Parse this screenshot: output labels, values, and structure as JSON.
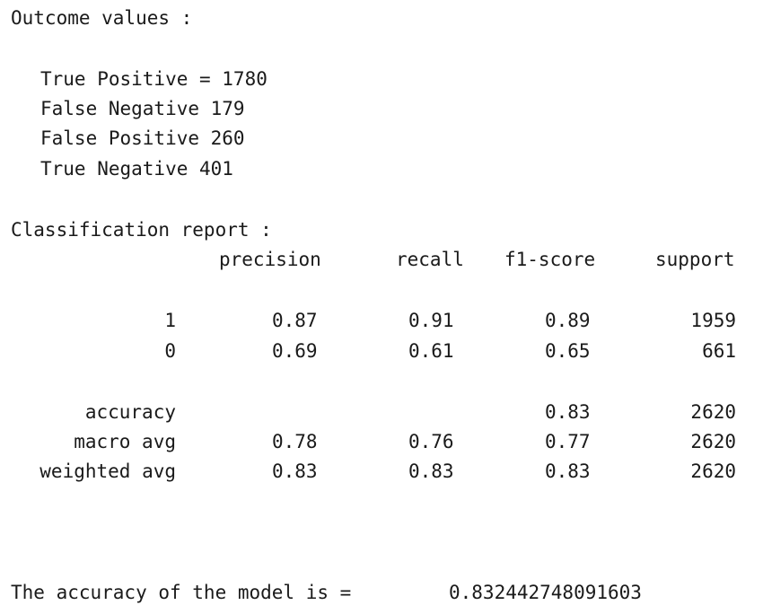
{
  "outcome": {
    "heading": "Outcome values :",
    "lines": [
      "True Positive = 1780",
      "False Negative 179",
      "False Positive 260",
      "True Negative 401"
    ]
  },
  "report": {
    "heading": "Classification report :",
    "columns": [
      "precision",
      "recall",
      "f1-score",
      "support"
    ],
    "rows": [
      {
        "label": "1",
        "precision": "0.87",
        "recall": "0.91",
        "f1": "0.89",
        "support": "1959"
      },
      {
        "label": "0",
        "precision": "0.69",
        "recall": "0.61",
        "f1": "0.65",
        "support": "661"
      },
      {
        "label": "accuracy",
        "precision": "",
        "recall": "",
        "f1": "0.83",
        "support": "2620"
      },
      {
        "label": "macro avg",
        "precision": "0.78",
        "recall": "0.76",
        "f1": "0.77",
        "support": "2620"
      },
      {
        "label": "weighted avg",
        "precision": "0.83",
        "recall": "0.83",
        "f1": "0.83",
        "support": "2620"
      }
    ]
  },
  "accuracy_line": {
    "text": "The accuracy of the model is =",
    "value": "0.832442748091603"
  }
}
